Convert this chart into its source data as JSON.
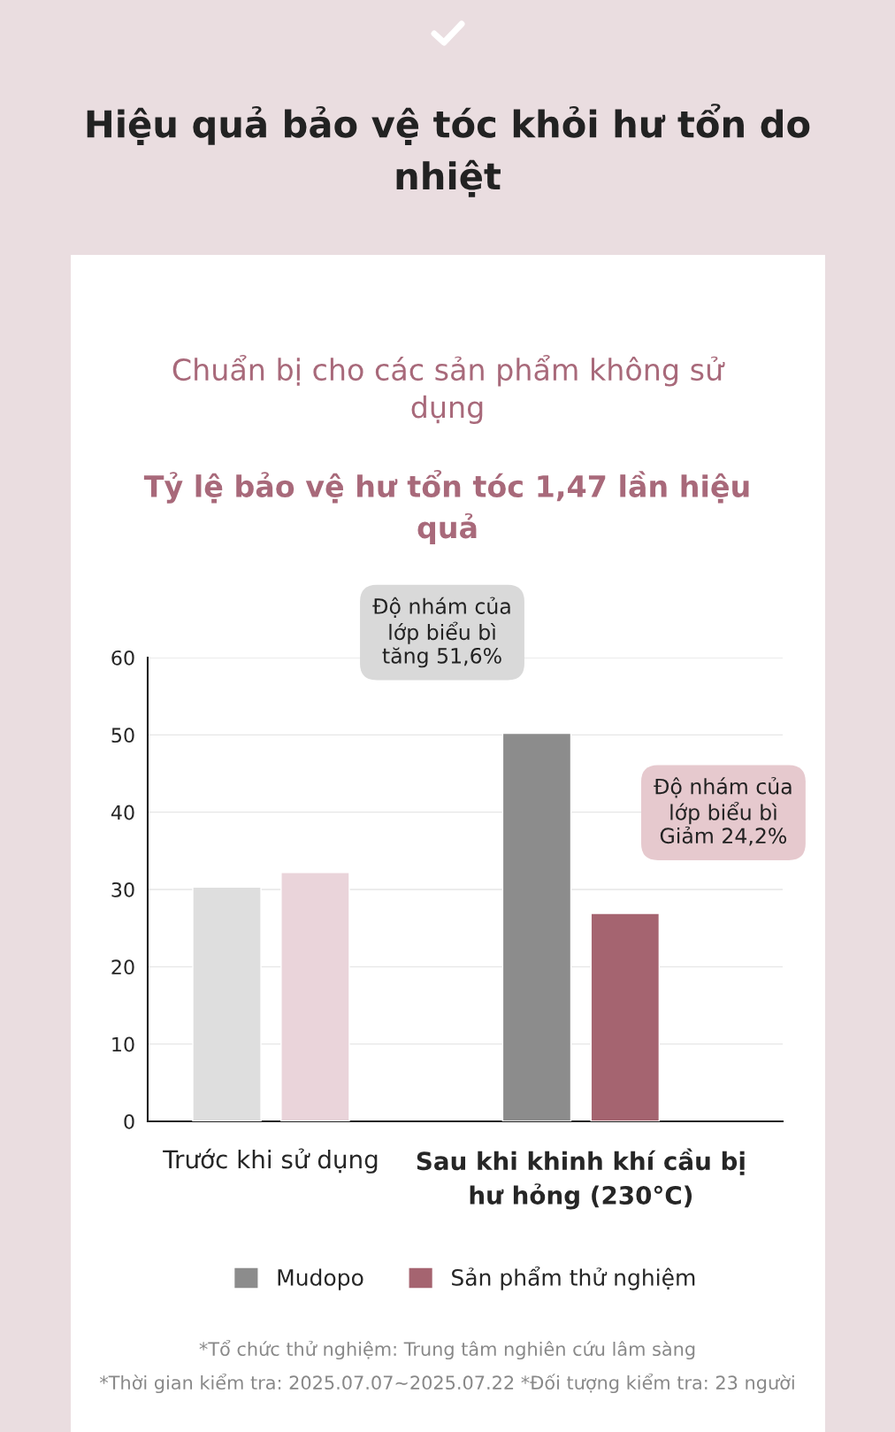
{
  "chart_data": {
    "type": "bar",
    "title": "Hiệu quả bảo vệ tóc khỏi hư tổn do\nnhiệt",
    "subtitle": "Chuẩn bị cho các sản phẩm không sử\ndụng\nTỷ lệ bảo vệ hư tổn tóc 1,47 lần hiệu\nquả",
    "categories": [
      "Trước khi sử dụng",
      "Sau khi khinh khí cầu bị\như hỏng (230°C)"
    ],
    "series": [
      {
        "name": "Mudopo",
        "color": "#8c8c8c",
        "colors": [
          "#dedede",
          "#8c8c8c"
        ],
        "values": [
          30.3,
          50.2
        ]
      },
      {
        "name": "Sản phẩm thử nghiệm",
        "color": "#a56470",
        "colors": [
          "#ead4da",
          "#a56470"
        ],
        "values": [
          32.2,
          26.9
        ]
      }
    ],
    "ylim": [
      0,
      60
    ],
    "yticks": [
      0,
      10,
      20,
      30,
      40,
      50,
      60
    ],
    "grid": "y",
    "legend": "bottom",
    "annotations": [
      "Độ nhám của\nlớp biểu bì\ntăng 51,6%",
      "Độ nhám của\nlớp biểu bì\nGiảm 24,2%",
      "*Tổ chức thử nghiệm: Trung tâm nghiên cứu lâm sàng",
      "*Thời gian kiểm tra: 2025.07.07~2025.07.22 *Đối tượng kiểm tra: 23 người"
    ]
  }
}
